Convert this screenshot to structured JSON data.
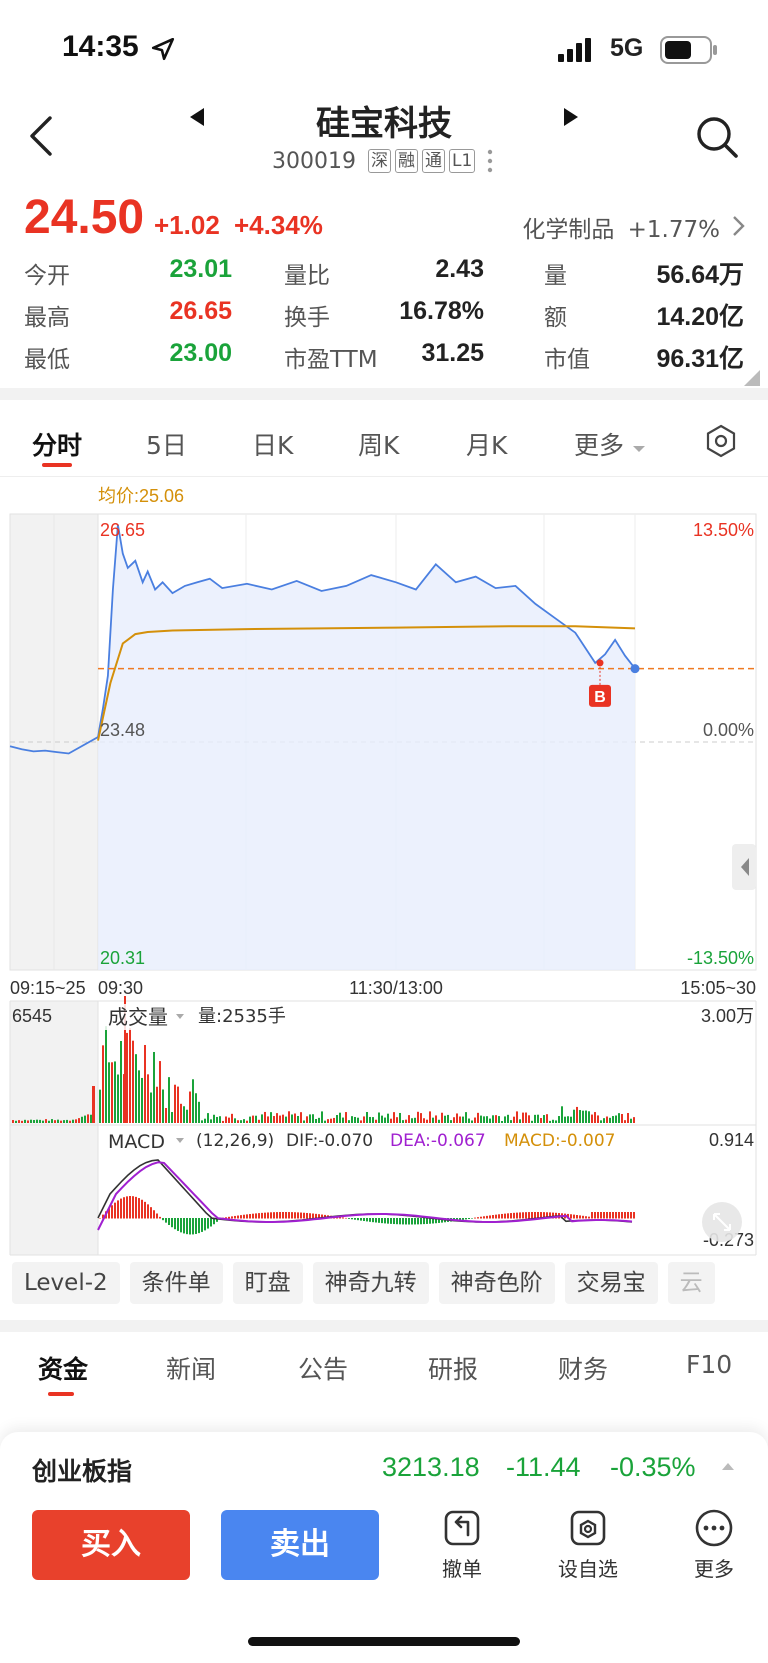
{
  "status_bar": {
    "time": "14:35",
    "network": "5G",
    "icons": [
      "location-arrow-icon",
      "signal-icon",
      "battery-icon"
    ]
  },
  "header": {
    "title": "硅宝科技",
    "code": "300019",
    "tags": [
      "深",
      "融",
      "通",
      "L1"
    ]
  },
  "quote": {
    "price": "24.50",
    "change": "+1.02",
    "change_pct": "+4.34%",
    "sector_name": "化学制品",
    "sector_pct": "+1.77%"
  },
  "stats": [
    {
      "label": "今开",
      "value": "23.01",
      "color": "#1aa33a"
    },
    {
      "label": "量比",
      "value": "2.43",
      "color": "#222222"
    },
    {
      "label": "量",
      "value": "56.64万",
      "color": "#222222"
    },
    {
      "label": "最高",
      "value": "26.65",
      "color": "#e93323"
    },
    {
      "label": "换手",
      "value": "16.78%",
      "color": "#222222"
    },
    {
      "label": "额",
      "value": "14.20亿",
      "color": "#222222"
    },
    {
      "label": "最低",
      "value": "23.00",
      "color": "#1aa33a"
    },
    {
      "label": "市盈TTM",
      "value": "31.25",
      "color": "#222222"
    },
    {
      "label": "市值",
      "value": "96.31亿",
      "color": "#222222"
    }
  ],
  "chart_tabs": [
    "分时",
    "5日",
    "日K",
    "周K",
    "月K",
    "更多"
  ],
  "chart_data": {
    "type": "line",
    "avg_price_label": "均价:25.06",
    "y_left_labels": {
      "top": "26.65",
      "mid": "23.48",
      "bottom": "20.31"
    },
    "y_right_labels": {
      "top": "13.50%",
      "mid": "0.00%",
      "bottom": "-13.50%"
    },
    "x_labels": [
      "09:15~25",
      "09:30",
      "11:30/13:00",
      "15:05~30"
    ],
    "prev_close": 23.48,
    "y_range": [
      20.31,
      26.65
    ],
    "current_price": 24.5,
    "marker": "B",
    "series": [
      {
        "name": "price",
        "x": [
          "09:15",
          "09:17",
          "09:19",
          "09:21",
          "09:23",
          "09:25",
          "09:30",
          "09:32",
          "09:34",
          "09:36",
          "09:38",
          "09:40",
          "09:42",
          "09:45",
          "09:48",
          "09:50",
          "09:53",
          "09:56",
          "10:00",
          "10:05",
          "10:10",
          "10:15",
          "10:20",
          "10:30",
          "10:40",
          "10:50",
          "11:00",
          "11:10",
          "11:20",
          "11:30",
          "13:10",
          "13:20",
          "13:30",
          "13:40",
          "13:50",
          "14:00",
          "14:10",
          "14:20",
          "14:30",
          "14:40",
          "14:45",
          "14:50",
          "14:55",
          "15:00"
        ],
        "values": [
          23.42,
          23.38,
          23.35,
          23.36,
          23.34,
          23.32,
          23.55,
          23.95,
          24.4,
          25.6,
          26.5,
          26.1,
          25.9,
          26.0,
          25.7,
          25.85,
          25.6,
          25.7,
          25.55,
          25.65,
          25.7,
          25.75,
          25.62,
          25.68,
          25.6,
          25.72,
          25.58,
          25.65,
          25.8,
          25.7,
          25.6,
          25.95,
          25.7,
          25.78,
          25.62,
          25.65,
          25.4,
          25.2,
          25.0,
          24.58,
          24.7,
          24.9,
          24.68,
          24.5
        ]
      },
      {
        "name": "avg",
        "x": [
          "09:30",
          "09:35",
          "09:40",
          "09:45",
          "09:50",
          "10:00",
          "10:30",
          "11:00",
          "11:30",
          "13:30",
          "14:00",
          "14:30",
          "15:00"
        ],
        "values": [
          23.5,
          24.3,
          24.85,
          24.98,
          25.01,
          25.03,
          25.05,
          25.06,
          25.07,
          25.08,
          25.09,
          25.09,
          25.06
        ]
      }
    ],
    "volume_panel": {
      "left_label": "6545",
      "indicator": "成交量",
      "volume_text": "量:2535手",
      "right_label": "3.00万"
    },
    "macd_panel": {
      "indicator": "MACD",
      "params": "(12,26,9)",
      "dif": "DIF:-0.070",
      "dea": "DEA:-0.067",
      "macd": "MACD:-0.007",
      "right_top": "0.914",
      "right_bottom": "-0.273"
    }
  },
  "tools": [
    "Level-2",
    "条件单",
    "盯盘",
    "神奇九转",
    "神奇色阶",
    "交易宝",
    "云"
  ],
  "bottom_tabs": [
    "资金",
    "新闻",
    "公告",
    "研报",
    "财务",
    "F10"
  ],
  "index_bar": {
    "name": "创业板指",
    "value": "3213.18",
    "change": "-11.44",
    "pct": "-0.35%"
  },
  "actions": {
    "buy": "买入",
    "sell": "卖出",
    "cancel": "撤单",
    "watch": "设自选",
    "more": "更多"
  }
}
